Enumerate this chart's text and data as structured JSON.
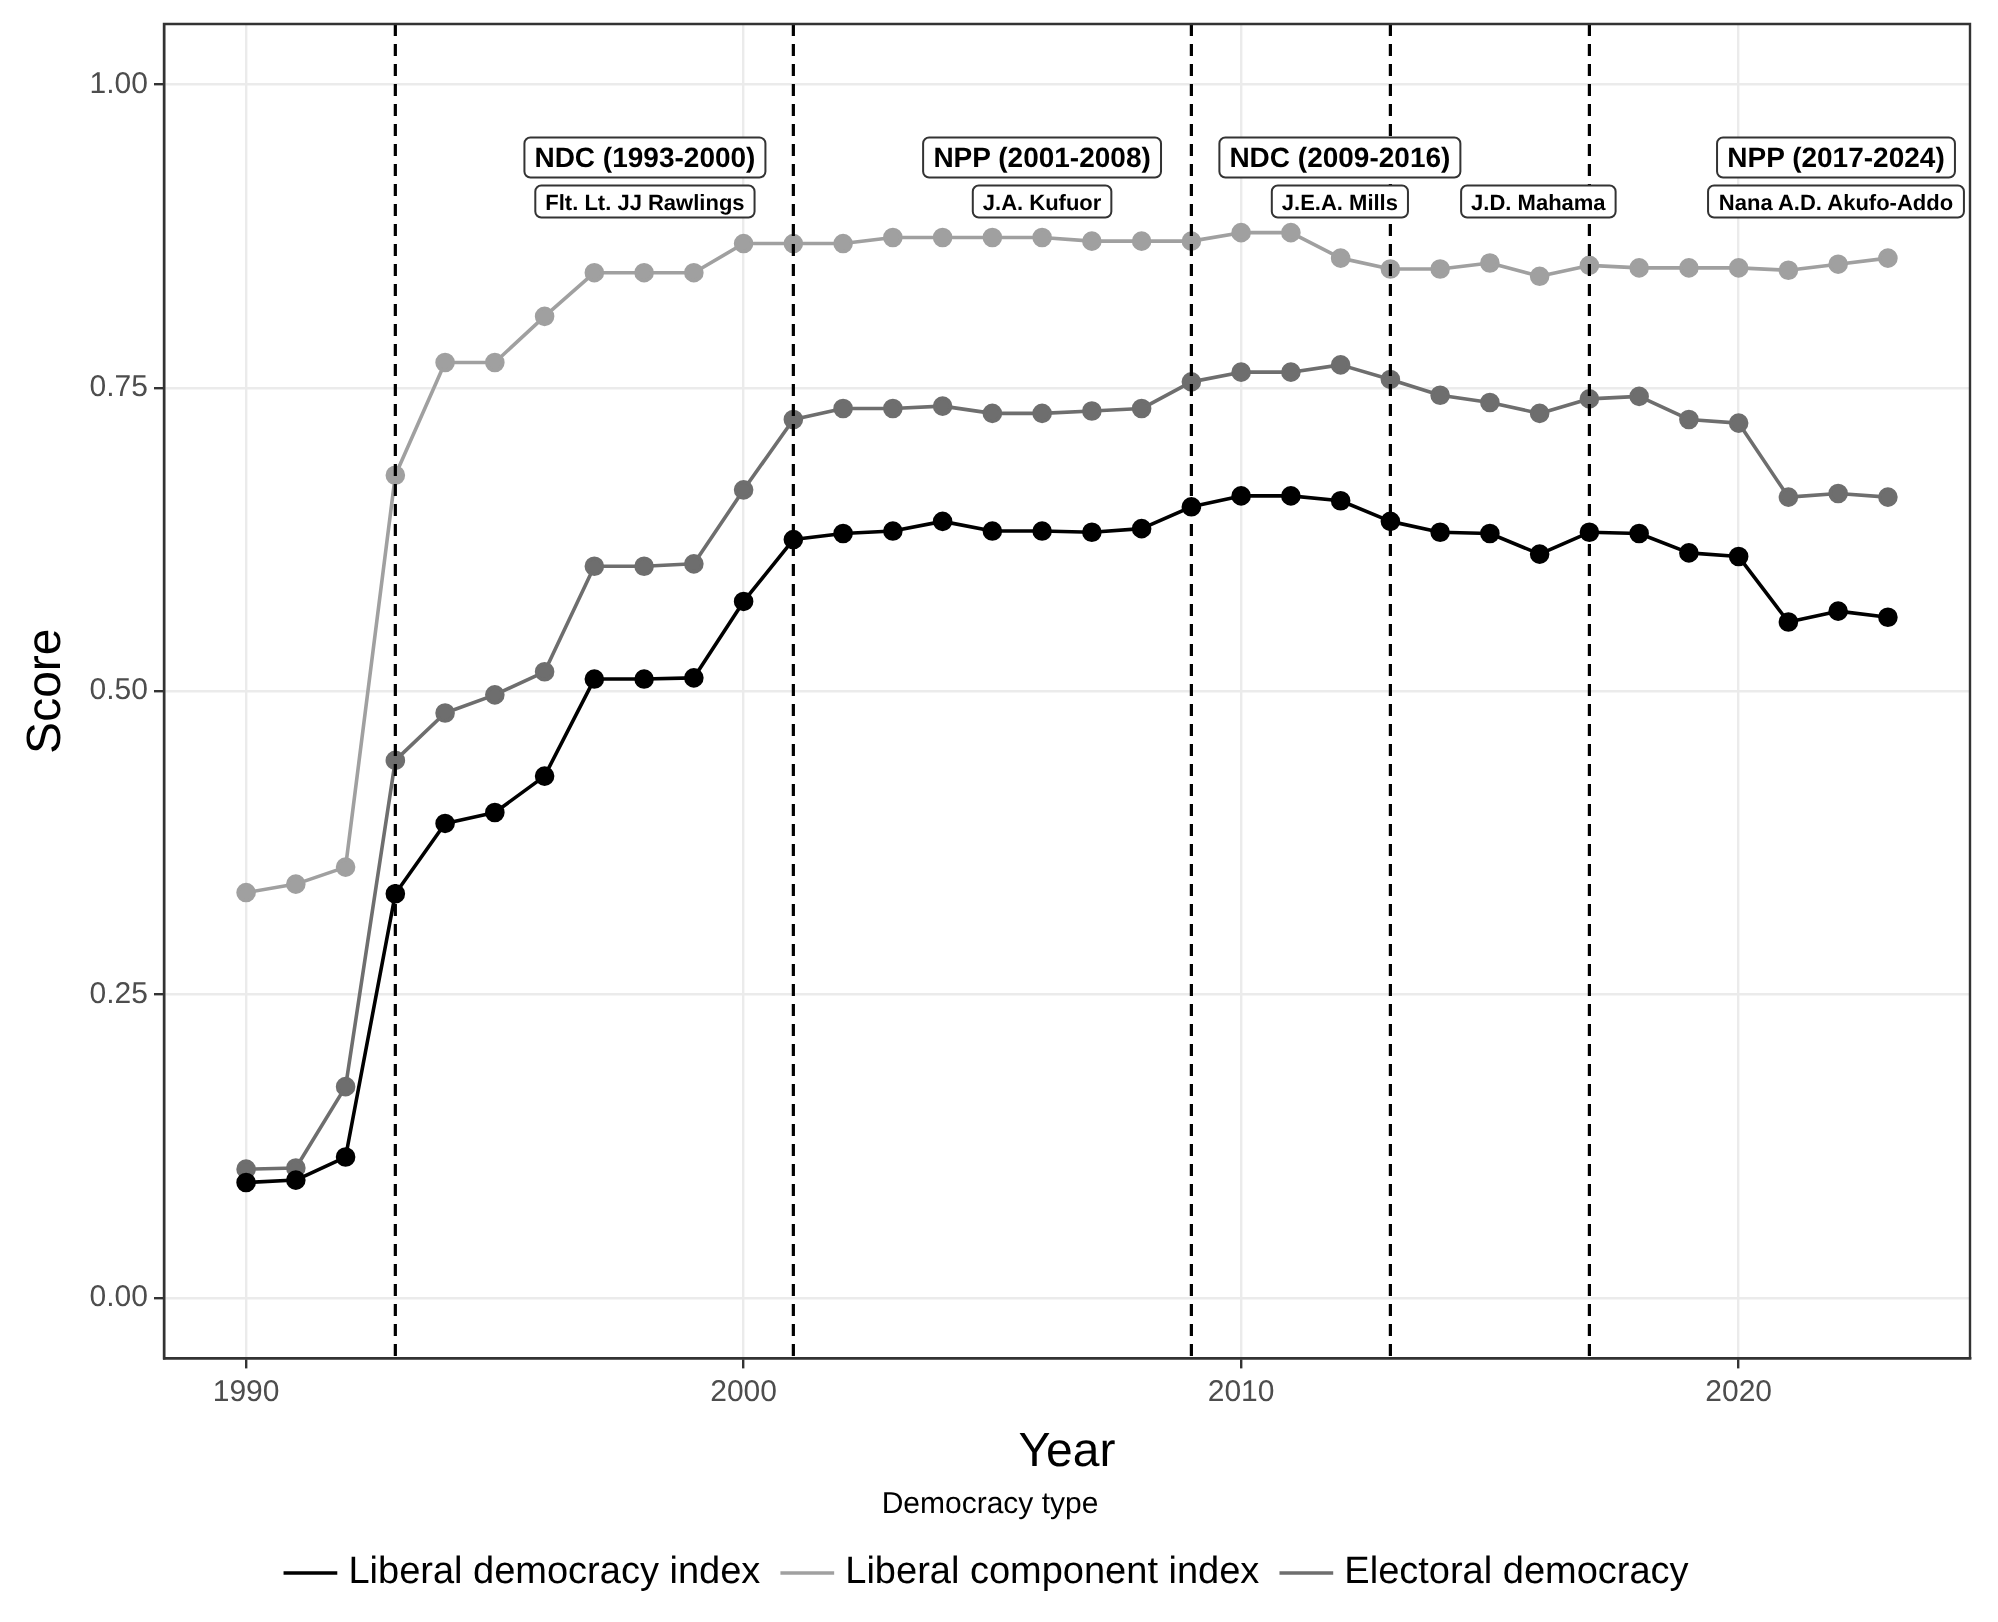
{
  "chart_data": {
    "type": "line",
    "xlabel": "Year",
    "ylabel": "Score",
    "legend_title": "Democracy type",
    "x": [
      1990,
      1991,
      1992,
      1993,
      1994,
      1995,
      1996,
      1997,
      1998,
      1999,
      2000,
      2001,
      2002,
      2003,
      2004,
      2005,
      2006,
      2007,
      2008,
      2009,
      2010,
      2011,
      2012,
      2013,
      2014,
      2015,
      2016,
      2017,
      2018,
      2019,
      2020,
      2021,
      2022,
      2023
    ],
    "series": [
      {
        "name": "Liberal democracy index",
        "color": "#000000",
        "values": [
          0.095,
          0.097,
          0.116,
          0.333,
          0.391,
          0.4,
          0.43,
          0.51,
          0.51,
          0.511,
          0.574,
          0.625,
          0.63,
          0.632,
          0.64,
          0.632,
          0.632,
          0.631,
          0.634,
          0.652,
          0.661,
          0.661,
          0.657,
          0.64,
          0.631,
          0.63,
          0.613,
          0.631,
          0.63,
          0.614,
          0.611,
          0.557,
          0.566,
          0.561
        ]
      },
      {
        "name": "Liberal component index",
        "color": "#a0a0a0",
        "values": [
          0.334,
          0.341,
          0.355,
          0.678,
          0.771,
          0.771,
          0.809,
          0.845,
          0.845,
          0.845,
          0.869,
          0.869,
          0.869,
          0.874,
          0.874,
          0.874,
          0.874,
          0.871,
          0.871,
          0.871,
          0.878,
          0.878,
          0.857,
          0.848,
          0.848,
          0.853,
          0.842,
          0.851,
          0.849,
          0.849,
          0.849,
          0.847,
          0.852,
          0.857
        ]
      },
      {
        "name": "Electoral democracy",
        "color": "#6e6e6e",
        "values": [
          0.106,
          0.107,
          0.174,
          0.443,
          0.482,
          0.497,
          0.516,
          0.603,
          0.603,
          0.605,
          0.666,
          0.724,
          0.733,
          0.733,
          0.735,
          0.729,
          0.729,
          0.731,
          0.733,
          0.755,
          0.763,
          0.763,
          0.769,
          0.757,
          0.744,
          0.738,
          0.729,
          0.741,
          0.743,
          0.724,
          0.721,
          0.66,
          0.663,
          0.66
        ]
      }
    ],
    "xlim": [
      1988.35,
      2024.65
    ],
    "xticks": [
      1990,
      2000,
      2010,
      2020
    ],
    "ylim": [
      -0.05,
      1.05
    ],
    "yticks": [
      {
        "value": 0,
        "label": "0.00"
      },
      {
        "value": 0.25,
        "label": "0.25"
      },
      {
        "value": 0.5,
        "label": "0.50"
      },
      {
        "value": 0.75,
        "label": "0.75"
      },
      {
        "value": 1,
        "label": "1.00"
      }
    ],
    "ref_lines": [
      {
        "axis": "x",
        "value": 1993,
        "color": "#000000",
        "line_style": "dashed"
      },
      {
        "axis": "x",
        "value": 2001,
        "color": "#000000",
        "line_style": "dashed"
      },
      {
        "axis": "x",
        "value": 2009,
        "color": "#000000",
        "line_style": "dashed"
      },
      {
        "axis": "x",
        "value": 2013,
        "color": "#000000",
        "line_style": "dashed"
      },
      {
        "axis": "x",
        "value": 2017,
        "color": "#000000",
        "line_style": "dashed"
      }
    ],
    "annotations": [
      "NDC (1993-2000)",
      "Flt. Lt. JJ Rawlings",
      "NPP (2001-2008)",
      "J.A. Kufuor",
      "NDC (2009-2016)",
      "J.E.A. Mills",
      "J.D. Mahama",
      "NPP (2017-2024)",
      "Nana A.D. Akufo-Addo"
    ],
    "grid": true,
    "legend": "bottom",
    "marker": "circle",
    "line_style": "solid"
  }
}
